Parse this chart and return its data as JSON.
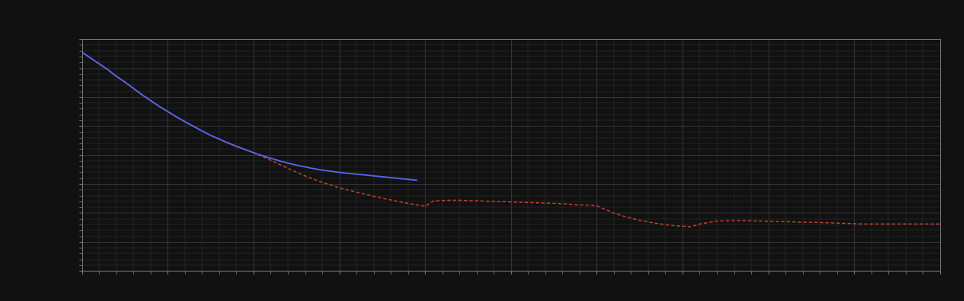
{
  "background_color": "#111111",
  "plot_bg_color": "#111111",
  "grid_color": "#444444",
  "axis_color": "#777777",
  "blue_line_color": "#5566ee",
  "red_line_color": "#cc4433",
  "figsize": [
    12.09,
    3.78
  ],
  "dpi": 100,
  "xlim": [
    0,
    100
  ],
  "ylim": [
    0,
    8
  ],
  "blue_x": [
    0,
    1,
    2,
    3,
    4,
    5,
    6,
    7,
    8,
    9,
    10,
    11,
    12,
    13,
    14,
    15,
    16,
    17,
    18,
    19,
    20,
    21,
    22,
    23,
    24,
    25,
    26,
    27,
    28,
    29,
    30,
    31,
    32,
    33,
    34,
    35,
    36,
    37,
    38,
    39
  ],
  "blue_y": [
    7.55,
    7.35,
    7.15,
    6.95,
    6.72,
    6.52,
    6.3,
    6.08,
    5.88,
    5.68,
    5.5,
    5.32,
    5.15,
    4.99,
    4.83,
    4.68,
    4.55,
    4.42,
    4.3,
    4.19,
    4.08,
    3.98,
    3.89,
    3.8,
    3.72,
    3.65,
    3.59,
    3.53,
    3.48,
    3.44,
    3.4,
    3.37,
    3.34,
    3.31,
    3.28,
    3.25,
    3.22,
    3.19,
    3.16,
    3.13
  ],
  "red_x": [
    0,
    1,
    2,
    3,
    4,
    5,
    6,
    7,
    8,
    9,
    10,
    11,
    12,
    13,
    14,
    15,
    16,
    17,
    18,
    19,
    20,
    21,
    22,
    23,
    24,
    25,
    26,
    27,
    28,
    29,
    30,
    31,
    32,
    33,
    34,
    35,
    36,
    37,
    38,
    39,
    40,
    41,
    42,
    43,
    44,
    45,
    46,
    47,
    48,
    49,
    50,
    51,
    52,
    53,
    54,
    55,
    56,
    57,
    58,
    59,
    60,
    61,
    62,
    63,
    64,
    65,
    66,
    67,
    68,
    69,
    70,
    71,
    72,
    73,
    74,
    75,
    76,
    77,
    78,
    79,
    80,
    81,
    82,
    83,
    84,
    85,
    86,
    87,
    88,
    89,
    90,
    91,
    92,
    93,
    94,
    95,
    96,
    97,
    98,
    99,
    100
  ],
  "red_y": [
    7.55,
    7.35,
    7.15,
    6.95,
    6.72,
    6.52,
    6.3,
    6.08,
    5.88,
    5.68,
    5.5,
    5.32,
    5.15,
    4.99,
    4.83,
    4.68,
    4.55,
    4.42,
    4.3,
    4.19,
    4.08,
    3.95,
    3.82,
    3.68,
    3.54,
    3.41,
    3.28,
    3.16,
    3.06,
    2.96,
    2.87,
    2.79,
    2.72,
    2.65,
    2.58,
    2.51,
    2.45,
    2.39,
    2.33,
    2.28,
    2.23,
    2.42,
    2.43,
    2.44,
    2.44,
    2.43,
    2.42,
    2.41,
    2.4,
    2.39,
    2.38,
    2.37,
    2.36,
    2.35,
    2.34,
    2.33,
    2.32,
    2.3,
    2.28,
    2.27,
    2.25,
    2.12,
    2.0,
    1.9,
    1.82,
    1.75,
    1.69,
    1.64,
    1.6,
    1.56,
    1.54,
    1.52,
    1.62,
    1.67,
    1.72,
    1.73,
    1.74,
    1.74,
    1.73,
    1.72,
    1.71,
    1.7,
    1.7,
    1.69,
    1.68,
    1.68,
    1.67,
    1.66,
    1.65,
    1.64,
    1.63,
    1.62,
    1.62,
    1.62,
    1.62,
    1.62,
    1.62,
    1.62,
    1.62,
    1.62,
    1.62
  ]
}
